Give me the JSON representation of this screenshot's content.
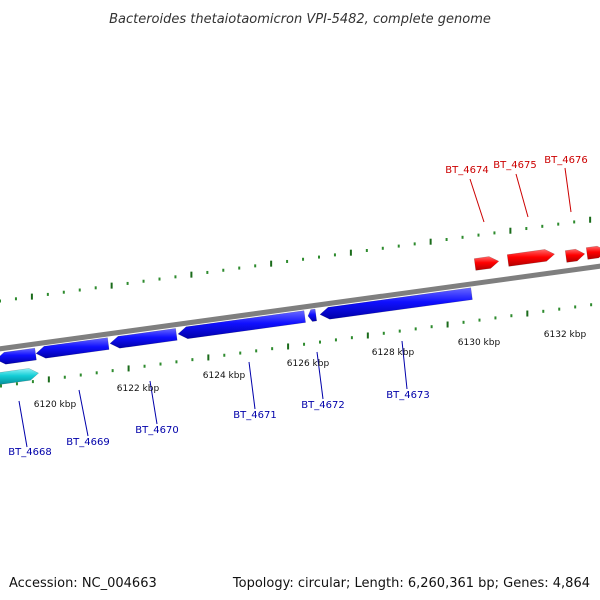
{
  "title": "Bacteroides thetaiotaomicron VPI-5482, complete genome",
  "footer": {
    "accession": "Accession: NC_004663",
    "summary": "Topology: circular; Length: 6,260,361 bp; Genes: 4,864"
  },
  "colors": {
    "backbone": "#7f7f7f",
    "tick_major": "#1a6b1a",
    "tick_minor": "#2e8b2e",
    "gene_forward": "#e60000",
    "gene_reverse": "#0000dd",
    "gene_other": "#00bcc8",
    "label_forward": "#cc0000",
    "label_reverse": "#0000aa"
  },
  "scale_labels": [
    "6120 kbp",
    "6122 kbp",
    "6124 kbp",
    "6126 kbp",
    "6128 kbp",
    "6130 kbp",
    "6132 kbp"
  ],
  "genes_forward": [
    {
      "label": "BT_4674"
    },
    {
      "label": "BT_4675"
    },
    {
      "label": "BT_4676"
    }
  ],
  "genes_reverse": [
    {
      "label": "BT_4668"
    },
    {
      "label": "BT_4669"
    },
    {
      "label": "BT_4670"
    },
    {
      "label": "BT_4671"
    },
    {
      "label": "BT_4672"
    },
    {
      "label": "BT_4673"
    }
  ]
}
